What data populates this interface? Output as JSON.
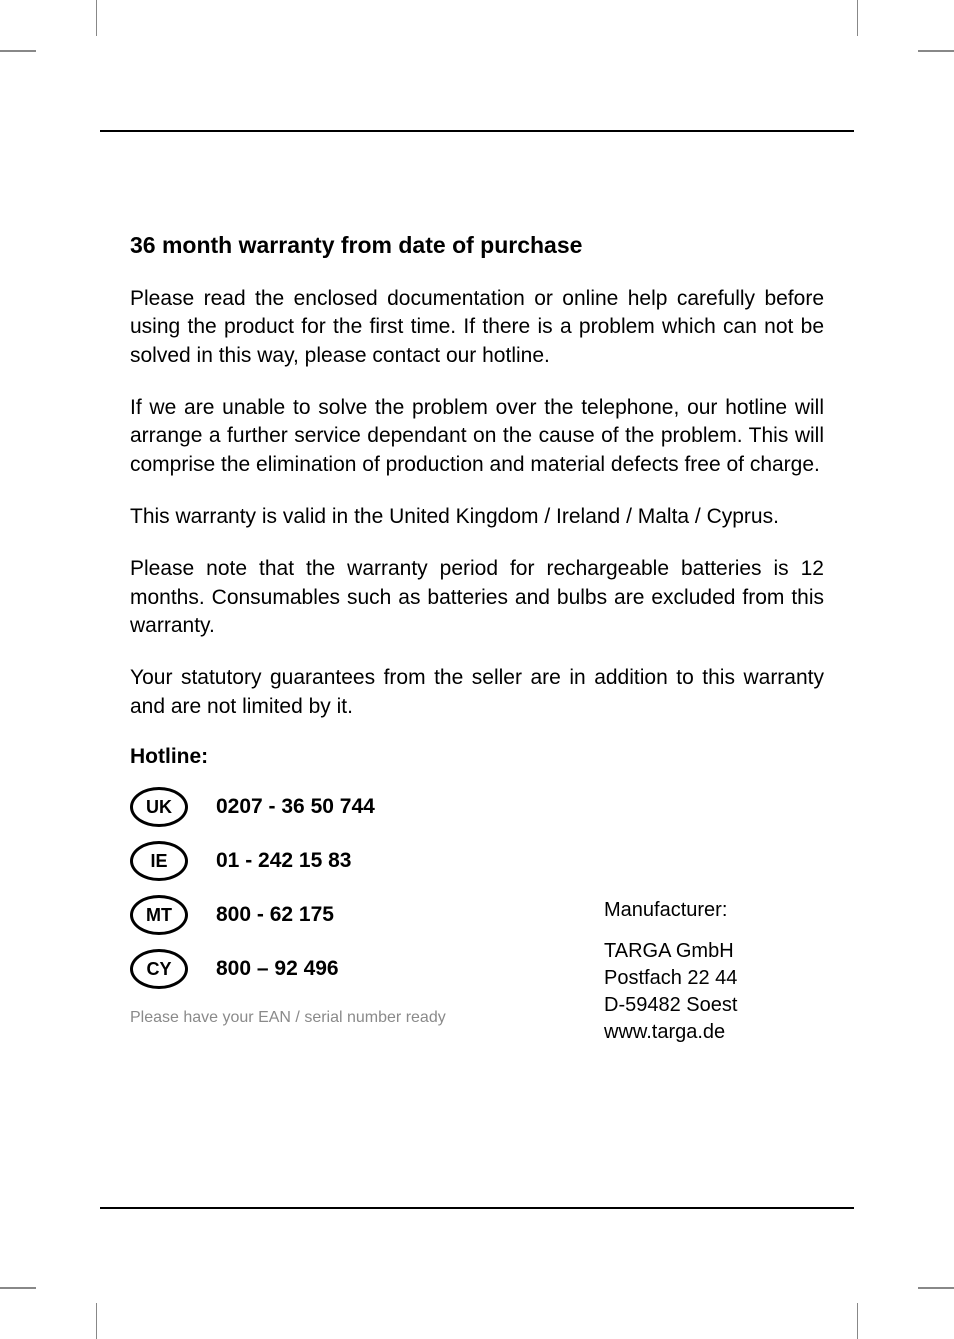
{
  "colors": {
    "text": "#000000",
    "footnote": "#8a8a8a",
    "background": "#ffffff",
    "rule": "#000000"
  },
  "typography": {
    "title_fontsize": 23,
    "body_fontsize": 21,
    "footnote_fontsize": 16,
    "oval_fontsize": 18
  },
  "title": "36 month warranty from date of purchase",
  "paragraphs": [
    "Please read the enclosed documentation or online help carefully before using the product for the first time. If there is a problem which can not be solved in this way, please contact our hotline.",
    "If we are unable to solve the problem over the telephone, our hotline will arrange a further service dependant on the cause of the problem. This will comprise the elimination of production and material defects free of charge.",
    "This warranty is valid in the United Kingdom / Ireland / Malta / Cyprus.",
    "Please note that the warranty period for rechargeable batteries is 12 months. Consumables such as batteries and bulbs are excluded from this warranty.",
    "Your statutory guarantees from the seller are in addition to this warranty and are not limited by it."
  ],
  "hotline_label": "Hotline:",
  "hotlines": [
    {
      "code": "UK",
      "phone": "0207 - 36 50 744"
    },
    {
      "code": "IE",
      "phone": "01 - 242 15 83"
    },
    {
      "code": "MT",
      "phone": "800 - 62 175"
    },
    {
      "code": "CY",
      "phone": "800 – 92 496"
    }
  ],
  "footnote": "Please have your EAN / serial number ready",
  "manufacturer": {
    "label": "Manufacturer:",
    "name": "TARGA GmbH",
    "pobox": "Postfach 22 44",
    "address": "D-59482 Soest",
    "website": "www.targa.de"
  }
}
